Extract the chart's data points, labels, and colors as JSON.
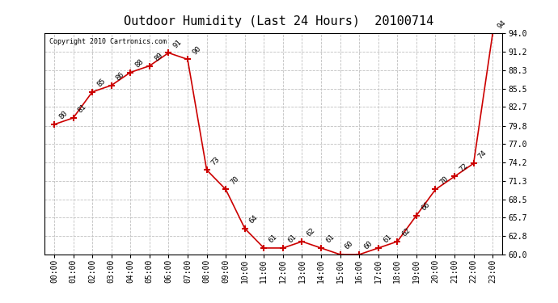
{
  "title": "Outdoor Humidity (Last 24 Hours)  20100714",
  "copyright": "Copyright 2010 Cartronics.com",
  "times": [
    "00:00",
    "01:00",
    "02:00",
    "03:00",
    "04:00",
    "05:00",
    "06:00",
    "07:00",
    "08:00",
    "09:00",
    "10:00",
    "11:00",
    "12:00",
    "13:00",
    "14:00",
    "15:00",
    "16:00",
    "17:00",
    "18:00",
    "19:00",
    "20:00",
    "21:00",
    "22:00",
    "23:00"
  ],
  "values": [
    80,
    81,
    85,
    86,
    88,
    89,
    91,
    90,
    73,
    70,
    64,
    61,
    61,
    62,
    61,
    60,
    60,
    61,
    62,
    66,
    70,
    72,
    74,
    94
  ],
  "ylim_min": 60.0,
  "ylim_max": 94.0,
  "yticks": [
    60.0,
    62.8,
    65.7,
    68.5,
    71.3,
    74.2,
    77.0,
    79.8,
    82.7,
    85.5,
    88.3,
    91.2,
    94.0
  ],
  "line_color": "#cc0000",
  "marker": "+",
  "marker_size": 6,
  "marker_color": "#cc0000",
  "grid_color": "#c0c0c0",
  "bg_color": "#ffffff",
  "title_fontsize": 11,
  "label_fontsize": 7,
  "annotation_fontsize": 6.5,
  "copyright_fontsize": 6
}
